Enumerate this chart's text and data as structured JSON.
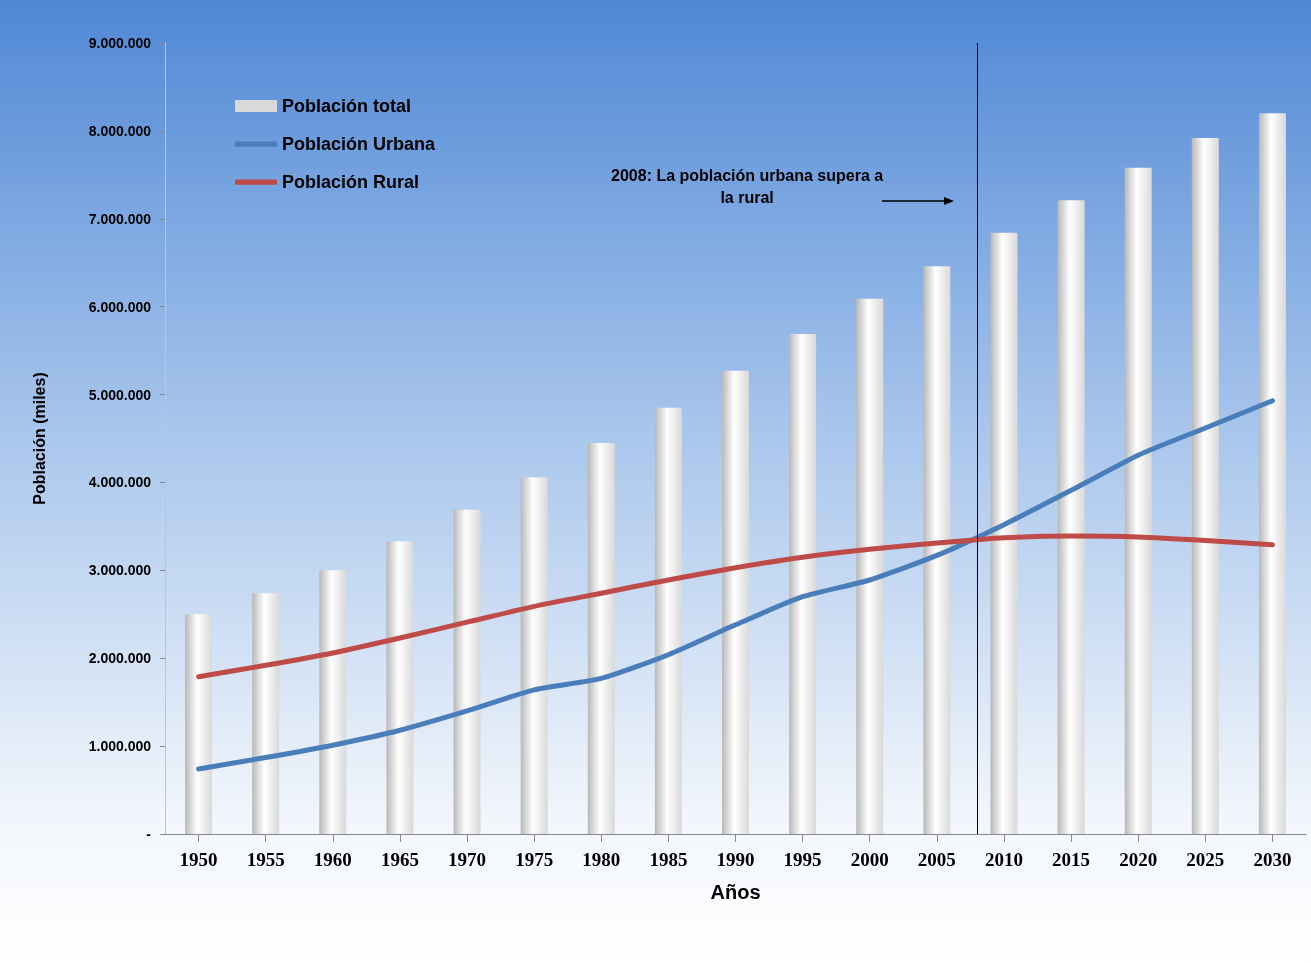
{
  "chart_data": {
    "type": "bar",
    "xlabel": "Años",
    "ylabel": "Población (miles)",
    "x": [
      1950,
      1955,
      1960,
      1965,
      1970,
      1975,
      1980,
      1985,
      1990,
      1995,
      2000,
      2005,
      2010,
      2015,
      2020,
      2025,
      2030
    ],
    "xlim": [
      1947.5,
      2032.5
    ],
    "xticks": [
      1950,
      1955,
      1960,
      1965,
      1970,
      1975,
      1980,
      1985,
      1990,
      1995,
      2000,
      2005,
      2010,
      2015,
      2020,
      2025,
      2030
    ],
    "ylim": [
      0,
      9000000
    ],
    "yticks": [
      {
        "value": 0,
        "label": "-"
      },
      {
        "value": 1000000,
        "label": "1.000.000"
      },
      {
        "value": 2000000,
        "label": "2.000.000"
      },
      {
        "value": 3000000,
        "label": "3.000.000"
      },
      {
        "value": 4000000,
        "label": "4.000.000"
      },
      {
        "value": 5000000,
        "label": "5.000.000"
      },
      {
        "value": 6000000,
        "label": "6.000.000"
      },
      {
        "value": 7000000,
        "label": "7.000.000"
      },
      {
        "value": 8000000,
        "label": "8.000.000"
      },
      {
        "value": 9000000,
        "label": "9.000.000"
      }
    ],
    "series": [
      {
        "name": "Población total",
        "color": "#d9d9d9",
        "values": [
          2500000,
          2740000,
          3000000,
          3330000,
          3690000,
          4060000,
          4450000,
          4850000,
          5270000,
          5690000,
          6090000,
          6460000,
          6840000,
          7210000,
          7580000,
          7920000,
          8200000
        ]
      },
      {
        "name": "Población Urbana",
        "type": "line",
        "color": "#4a7ebb",
        "values": [
          740000,
          870000,
          1010000,
          1180000,
          1400000,
          1640000,
          1770000,
          2040000,
          2380000,
          2700000,
          2890000,
          3170000,
          3520000,
          3910000,
          4310000,
          4620000,
          4930000
        ]
      },
      {
        "name": "Población Rural",
        "type": "line",
        "color": "#be4b48",
        "values": [
          1790000,
          1920000,
          2060000,
          2230000,
          2410000,
          2590000,
          2740000,
          2890000,
          3030000,
          3150000,
          3240000,
          3310000,
          3370000,
          3390000,
          3380000,
          3340000,
          3290000
        ]
      }
    ],
    "marker": "none",
    "line_style": "solid",
    "legend": "top left",
    "grid": false,
    "ref_lines": [
      {
        "axis": "x",
        "value": 2008,
        "color": "#000000"
      }
    ],
    "annotations": [
      "2008: La población urbana supera a la rural"
    ]
  }
}
